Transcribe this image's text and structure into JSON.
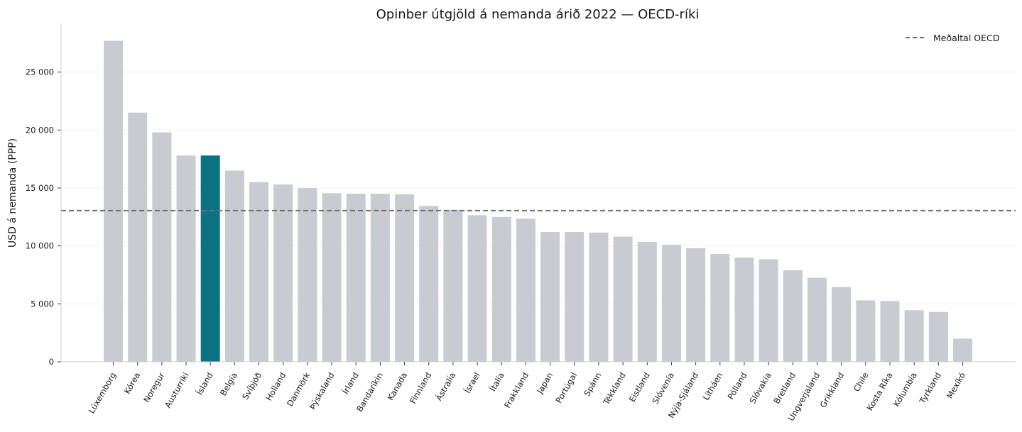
{
  "chart_data": {
    "type": "bar",
    "title": "Opinber útgjöld á nemanda árið 2022 — OECD-ríki",
    "xlabel": "",
    "ylabel": "USD á nemanda (PPP)",
    "ylim": [
      0,
      29200
    ],
    "yticks": [
      0,
      5000,
      10000,
      15000,
      20000,
      25000
    ],
    "ytick_labels": [
      "0",
      "5 000",
      "10 000",
      "15 000",
      "20 000",
      "25 000"
    ],
    "grid": "horizontal",
    "legend_position": "top-right",
    "highlight_category": "Ísland",
    "colors": {
      "bar": "#c8cbd1",
      "highlight": "#0c7182",
      "reference_line": "#707070",
      "axis": "#cccccc",
      "grid": "#f1f1f1"
    },
    "categories": [
      "Lúxemborg",
      "Kórea",
      "Noregur",
      "Austurríki",
      "Ísland",
      "Belgía",
      "Svíþjóð",
      "Holland",
      "Danmörk",
      "Þýskaland",
      "Írland",
      "Bandaríkin",
      "Kanada",
      "Finnland",
      "Ástralía",
      "Ísrael",
      "Ítalía",
      "Frakkland",
      "Japan",
      "Portúgal",
      "Spánn",
      "Tékkland",
      "Eistland",
      "Slóvenía",
      "Nýja-Sjáland",
      "Litháen",
      "Pólland",
      "Slóvakía",
      "Bretland",
      "Ungverjaland",
      "Grikkland",
      "Chile",
      "Kosta Ríka",
      "Kólumbía",
      "Tyrkland",
      "Mexíkó"
    ],
    "values": [
      27700,
      21500,
      19800,
      17800,
      17800,
      16500,
      15500,
      15300,
      15000,
      14550,
      14500,
      14500,
      14450,
      13450,
      13100,
      12650,
      12500,
      12350,
      11200,
      11200,
      11150,
      10800,
      10350,
      10100,
      9800,
      9300,
      9000,
      8850,
      7900,
      7250,
      6450,
      5300,
      5250,
      4450,
      4300,
      2000
    ],
    "reference_line": {
      "name": "Meðaltal OECD",
      "value": 13050
    }
  }
}
